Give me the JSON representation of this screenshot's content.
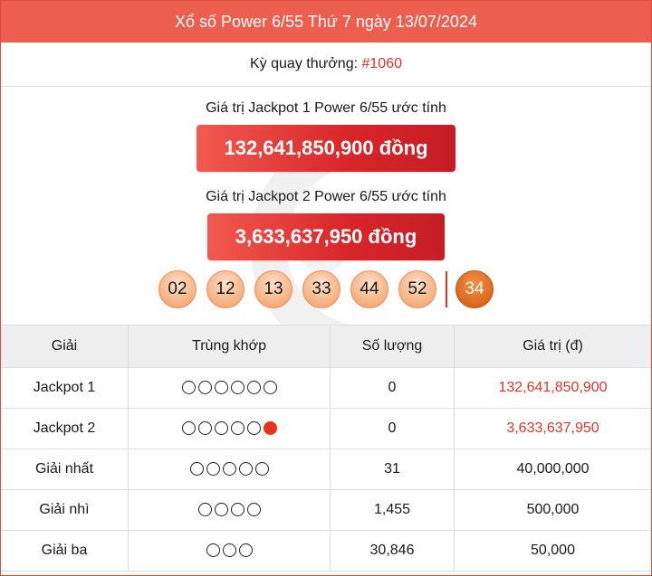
{
  "header": {
    "title": "Xổ số Power 6/55 Thứ 7 ngày 13/07/2024"
  },
  "draw": {
    "label": "Kỳ quay thưởng: ",
    "number": "#1060"
  },
  "jackpot1": {
    "label": "Giá trị Jackpot 1 Power 6/55 ước tính",
    "value": "132,641,850,900 đồng"
  },
  "jackpot2": {
    "label": "Giá trị Jackpot 2 Power 6/55 ước tính",
    "value": "3,633,637,950 đồng"
  },
  "balls": [
    "02",
    "12",
    "13",
    "33",
    "44",
    "52"
  ],
  "power_ball": "34",
  "colors": {
    "header": "#ec5f4e",
    "accent": "#d8252a",
    "ball": "#f7b98c",
    "power_ball": "#e06d22"
  },
  "table": {
    "headers": [
      "Giải",
      "Trùng khớp",
      "Số lượng",
      "Giá trị (đ)"
    ],
    "rows": [
      {
        "prize": "Jackpot 1",
        "match": 6,
        "bonus": false,
        "count": "0",
        "value": "132,641,850,900",
        "value_red": true
      },
      {
        "prize": "Jackpot 2",
        "match": 5,
        "bonus": true,
        "count": "0",
        "value": "3,633,637,950",
        "value_red": true
      },
      {
        "prize": "Giải nhất",
        "match": 5,
        "bonus": false,
        "count": "31",
        "value": "40,000,000",
        "value_red": false
      },
      {
        "prize": "Giải nhì",
        "match": 4,
        "bonus": false,
        "count": "1,455",
        "value": "500,000",
        "value_red": false
      },
      {
        "prize": "Giải ba",
        "match": 3,
        "bonus": false,
        "count": "30,846",
        "value": "50,000",
        "value_red": false
      }
    ]
  }
}
